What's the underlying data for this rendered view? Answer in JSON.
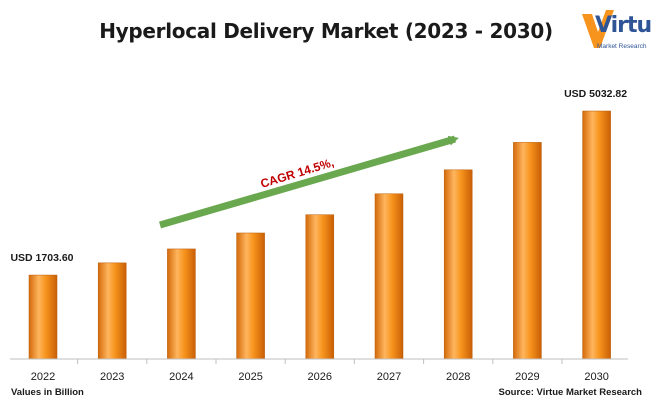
{
  "header": {
    "title": "Hyperlocal Delivery Market (2023 - 2030)"
  },
  "logo": {
    "name": "Virtue",
    "tagline": "Market Research"
  },
  "footer": {
    "units_note": "Values in Billion",
    "source": "Source: Virtue Market Research"
  },
  "colors": {
    "bar_light": "#ffc080",
    "bar_mid": "#f7941d",
    "bar_dark": "#d36a0a",
    "arrow": "#6aa84f",
    "cagr_text": "#c00000",
    "logo_blue": "#2f5597",
    "logo_orange": "#f7941d"
  },
  "chart_data": {
    "type": "bar",
    "title": "Hyperlocal Delivery Market (2023 - 2030)",
    "categories": [
      "2022",
      "2023",
      "2024",
      "2025",
      "2026",
      "2027",
      "2028",
      "2029",
      "2030"
    ],
    "series": [
      {
        "values": [
          1703.6,
          1950.6,
          2233.5,
          2557.4,
          2928.1,
          3352.7,
          3838.9,
          4395.5,
          5032.82
        ]
      }
    ],
    "data_labels": [
      {
        "category": "2022",
        "text": "USD 1703.60"
      },
      {
        "category": "2030",
        "text": "USD 5032.82"
      }
    ],
    "annotation": "CAGR 14.5%,",
    "ylim": [
      0,
      5300
    ],
    "grid": false,
    "legend": "none"
  }
}
